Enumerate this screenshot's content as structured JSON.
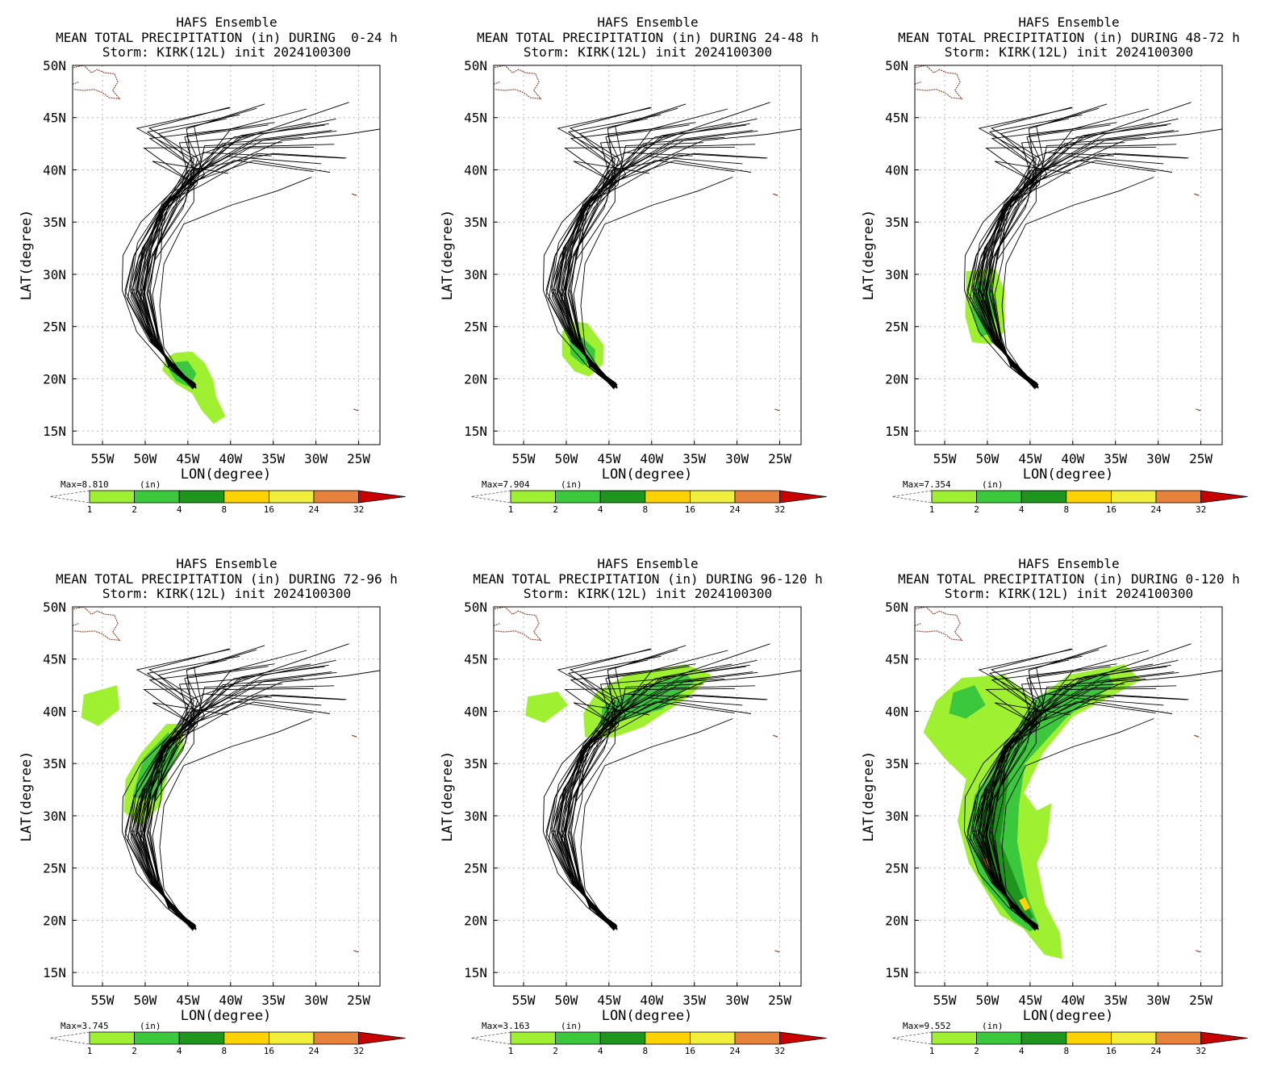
{
  "shared": {
    "suptitle": "HAFS Ensemble",
    "storm_line": "Storm: KIRK(12L) init 2024100300",
    "xlabel": "LON(degree)",
    "ylabel": "LAT(degree)",
    "x_ticks": [
      "55W",
      "50W",
      "45W",
      "40W",
      "35W",
      "30W",
      "25W"
    ],
    "x_tick_values": [
      -55,
      -50,
      -45,
      -40,
      -35,
      -30,
      -25
    ],
    "y_ticks": [
      "15N",
      "20N",
      "25N",
      "30N",
      "35N",
      "40N",
      "45N",
      "50N"
    ],
    "y_tick_values": [
      15,
      20,
      25,
      30,
      35,
      40,
      45,
      50
    ],
    "xlim": [
      -58.5,
      -22.5
    ],
    "ylim": [
      13.7,
      50
    ],
    "units": "(in)",
    "colorbar": {
      "levels": [
        "1",
        "2",
        "4",
        "8",
        "16",
        "24",
        "32"
      ],
      "colors": [
        "#a0f032",
        "#3cc83c",
        "#1e961e",
        "#ffd200",
        "#f0f03c",
        "#e6823c",
        "#c80000"
      ]
    },
    "land_color": "#8b4a3a",
    "track_color": "#000000"
  },
  "chart_data": [
    {
      "type": "heatmap",
      "title_prefix": "MEAN TOTAL PRECIPITATION (in) DURING ",
      "period": " 0-24 h",
      "max_label": "Max=8.810",
      "max_value": 8.81,
      "rain": [
        {
          "level": 1,
          "poly": [
            [
              -46.5,
              22.5
            ],
            [
              -44.5,
              22.6
            ],
            [
              -43,
              21.5
            ],
            [
              -42,
              19.8
            ],
            [
              -41.7,
              18.3
            ],
            [
              -40.6,
              16.4
            ],
            [
              -42,
              15.7
            ],
            [
              -43.4,
              17
            ],
            [
              -44.5,
              18.6
            ],
            [
              -46.4,
              19.5
            ],
            [
              -48,
              20.8
            ],
            [
              -47.6,
              22
            ]
          ]
        },
        {
          "level": 2,
          "poly": [
            [
              -46.5,
              21.6
            ],
            [
              -45,
              21.7
            ],
            [
              -44,
              20.5
            ],
            [
              -44.8,
              19.2
            ],
            [
              -46.4,
              19.8
            ],
            [
              -47.2,
              20.8
            ]
          ]
        }
      ]
    },
    {
      "type": "heatmap",
      "title_prefix": "MEAN TOTAL PRECIPITATION (in) DURING ",
      "period": "24-48 h",
      "max_label": "Max=7.904",
      "max_value": 7.904,
      "rain": [
        {
          "level": 1,
          "poly": [
            [
              -50.5,
              24.5
            ],
            [
              -49,
              25.5
            ],
            [
              -47.5,
              25.3
            ],
            [
              -45.6,
              23.2
            ],
            [
              -45.7,
              21.4
            ],
            [
              -47.3,
              20.2
            ],
            [
              -49,
              20.7
            ],
            [
              -50.5,
              22.2
            ]
          ]
        },
        {
          "level": 2,
          "poly": [
            [
              -49.6,
              23.6
            ],
            [
              -48.2,
              24
            ],
            [
              -46.6,
              22.8
            ],
            [
              -46.7,
              21.6
            ],
            [
              -48,
              21.3
            ],
            [
              -49.5,
              22.3
            ]
          ]
        }
      ]
    },
    {
      "type": "heatmap",
      "title_prefix": "MEAN TOTAL PRECIPITATION (in) DURING ",
      "period": "48-72 h",
      "max_label": "Max=7.354",
      "max_value": 7.354,
      "rain": [
        {
          "level": 1,
          "poly": [
            [
              -52.5,
              30.3
            ],
            [
              -49,
              30.5
            ],
            [
              -48,
              28.5
            ],
            [
              -48,
              24.5
            ],
            [
              -49.5,
              23.3
            ],
            [
              -51.8,
              23.5
            ],
            [
              -52.6,
              26
            ]
          ]
        },
        {
          "level": 2,
          "poly": [
            [
              -51.6,
              29.2
            ],
            [
              -49.7,
              29.6
            ],
            [
              -49,
              27
            ],
            [
              -49.3,
              24.5
            ],
            [
              -50.8,
              24
            ],
            [
              -51.9,
              26.5
            ]
          ]
        }
      ]
    },
    {
      "type": "heatmap",
      "title_prefix": "MEAN TOTAL PRECIPITATION (in) DURING ",
      "period": "72-96 h",
      "max_label": "Max=3.745",
      "max_value": 3.745,
      "rain": [
        {
          "level": 1,
          "poly": [
            [
              -47.5,
              38.8
            ],
            [
              -45.6,
              38.8
            ],
            [
              -45.5,
              36.5
            ],
            [
              -47.2,
              34.5
            ],
            [
              -48.2,
              31
            ],
            [
              -50.5,
              29
            ],
            [
              -52.5,
              30.4
            ],
            [
              -52.3,
              33.5
            ],
            [
              -50.5,
              36
            ]
          ]
        },
        {
          "level": 1,
          "poly": [
            [
              -57.2,
              41.6
            ],
            [
              -53.3,
              42.5
            ],
            [
              -53,
              40.2
            ],
            [
              -55.5,
              38.6
            ],
            [
              -57.5,
              39.4
            ]
          ]
        },
        {
          "level": 2,
          "poly": [
            [
              -47.3,
              38
            ],
            [
              -46,
              36.5
            ],
            [
              -48.8,
              31.5
            ],
            [
              -51.5,
              31.8
            ],
            [
              -50.2,
              35.5
            ]
          ]
        }
      ]
    },
    {
      "type": "heatmap",
      "title_prefix": "MEAN TOTAL PRECIPITATION (in) DURING ",
      "period": "96-120 h",
      "max_label": "Max=3.163",
      "max_value": 3.163,
      "rain": [
        {
          "level": 1,
          "poly": [
            [
              -43,
              43.5
            ],
            [
              -36,
              44.5
            ],
            [
              -33,
              43.5
            ],
            [
              -35.5,
              41.5
            ],
            [
              -41,
              38.5
            ],
            [
              -44.5,
              37.5
            ],
            [
              -47.8,
              37.5
            ],
            [
              -48,
              39.8
            ],
            [
              -46.5,
              41.8
            ]
          ]
        },
        {
          "level": 1,
          "poly": [
            [
              -54.5,
              41.4
            ],
            [
              -51,
              41.9
            ],
            [
              -49.8,
              40.6
            ],
            [
              -52.6,
              38.9
            ],
            [
              -54.8,
              39.6
            ]
          ]
        },
        {
          "level": 2,
          "poly": [
            [
              -42,
              42
            ],
            [
              -36,
              43.6
            ],
            [
              -35,
              42.8
            ],
            [
              -38.8,
              40.2
            ],
            [
              -46,
              38.6
            ],
            [
              -45.8,
              40.4
            ]
          ]
        }
      ]
    },
    {
      "type": "heatmap",
      "title_prefix": "MEAN TOTAL PRECIPITATION (in) DURING ",
      "period": "0-120 h",
      "max_label": "Max=9.552",
      "max_value": 9.552,
      "rain": [
        {
          "level": 1,
          "poly": [
            [
              -53,
              43.2
            ],
            [
              -48,
              43.5
            ],
            [
              -44.5,
              41
            ],
            [
              -40.5,
              43.5
            ],
            [
              -34,
              44.5
            ],
            [
              -32,
              43
            ],
            [
              -36.5,
              41
            ],
            [
              -40,
              39.5
            ],
            [
              -43.5,
              36
            ],
            [
              -45.7,
              32.2
            ],
            [
              -44.2,
              30.5
            ],
            [
              -42.5,
              31.2
            ],
            [
              -43,
              27.5
            ],
            [
              -44.2,
              25.5
            ],
            [
              -43.2,
              21.5
            ],
            [
              -41.5,
              18.8
            ],
            [
              -41.2,
              16.3
            ],
            [
              -43.3,
              16.7
            ],
            [
              -45.8,
              19.2
            ],
            [
              -48.5,
              20.5
            ],
            [
              -52.2,
              25.5
            ],
            [
              -53.5,
              29.5
            ],
            [
              -52.5,
              33.5
            ],
            [
              -55,
              35.5
            ],
            [
              -57.5,
              38
            ],
            [
              -56,
              41
            ]
          ]
        },
        {
          "level": 2,
          "poly": [
            [
              -54,
              41.8
            ],
            [
              -51.5,
              42.5
            ],
            [
              -50.2,
              40.6
            ],
            [
              -52.5,
              39.3
            ],
            [
              -54.5,
              39.8
            ]
          ]
        },
        {
          "level": 2,
          "poly": [
            [
              -44,
              41.5
            ],
            [
              -36,
              43.8
            ],
            [
              -35.2,
              42.5
            ],
            [
              -40.5,
              39.6
            ],
            [
              -45.6,
              35
            ],
            [
              -46.3,
              31
            ],
            [
              -46.5,
              27.5
            ],
            [
              -45.3,
              22.2
            ],
            [
              -44,
              19.5
            ],
            [
              -45,
              18.9
            ],
            [
              -47,
              20
            ],
            [
              -50.5,
              23.5
            ],
            [
              -52.3,
              27.5
            ],
            [
              -51.5,
              32
            ],
            [
              -48,
              36
            ]
          ]
        },
        {
          "level": 3,
          "poly": [
            [
              -48.3,
              35
            ],
            [
              -47.5,
              33.5
            ],
            [
              -48.5,
              27.6
            ],
            [
              -46,
              22.5
            ],
            [
              -44.6,
              20.3
            ],
            [
              -45.5,
              19.7
            ],
            [
              -49.2,
              23.2
            ],
            [
              -50.8,
              27.5
            ],
            [
              -50.5,
              31
            ]
          ]
        },
        {
          "level": 4,
          "poly": [
            [
              -50.6,
              25.8
            ],
            [
              -49.9,
              26
            ],
            [
              -49.3,
              24.8
            ],
            [
              -50,
              24.5
            ]
          ]
        },
        {
          "level": 4,
          "poly": [
            [
              -46.3,
              21.9
            ],
            [
              -45.6,
              22.2
            ],
            [
              -45,
              21.2
            ],
            [
              -45.6,
              20.9
            ]
          ]
        }
      ]
    }
  ]
}
